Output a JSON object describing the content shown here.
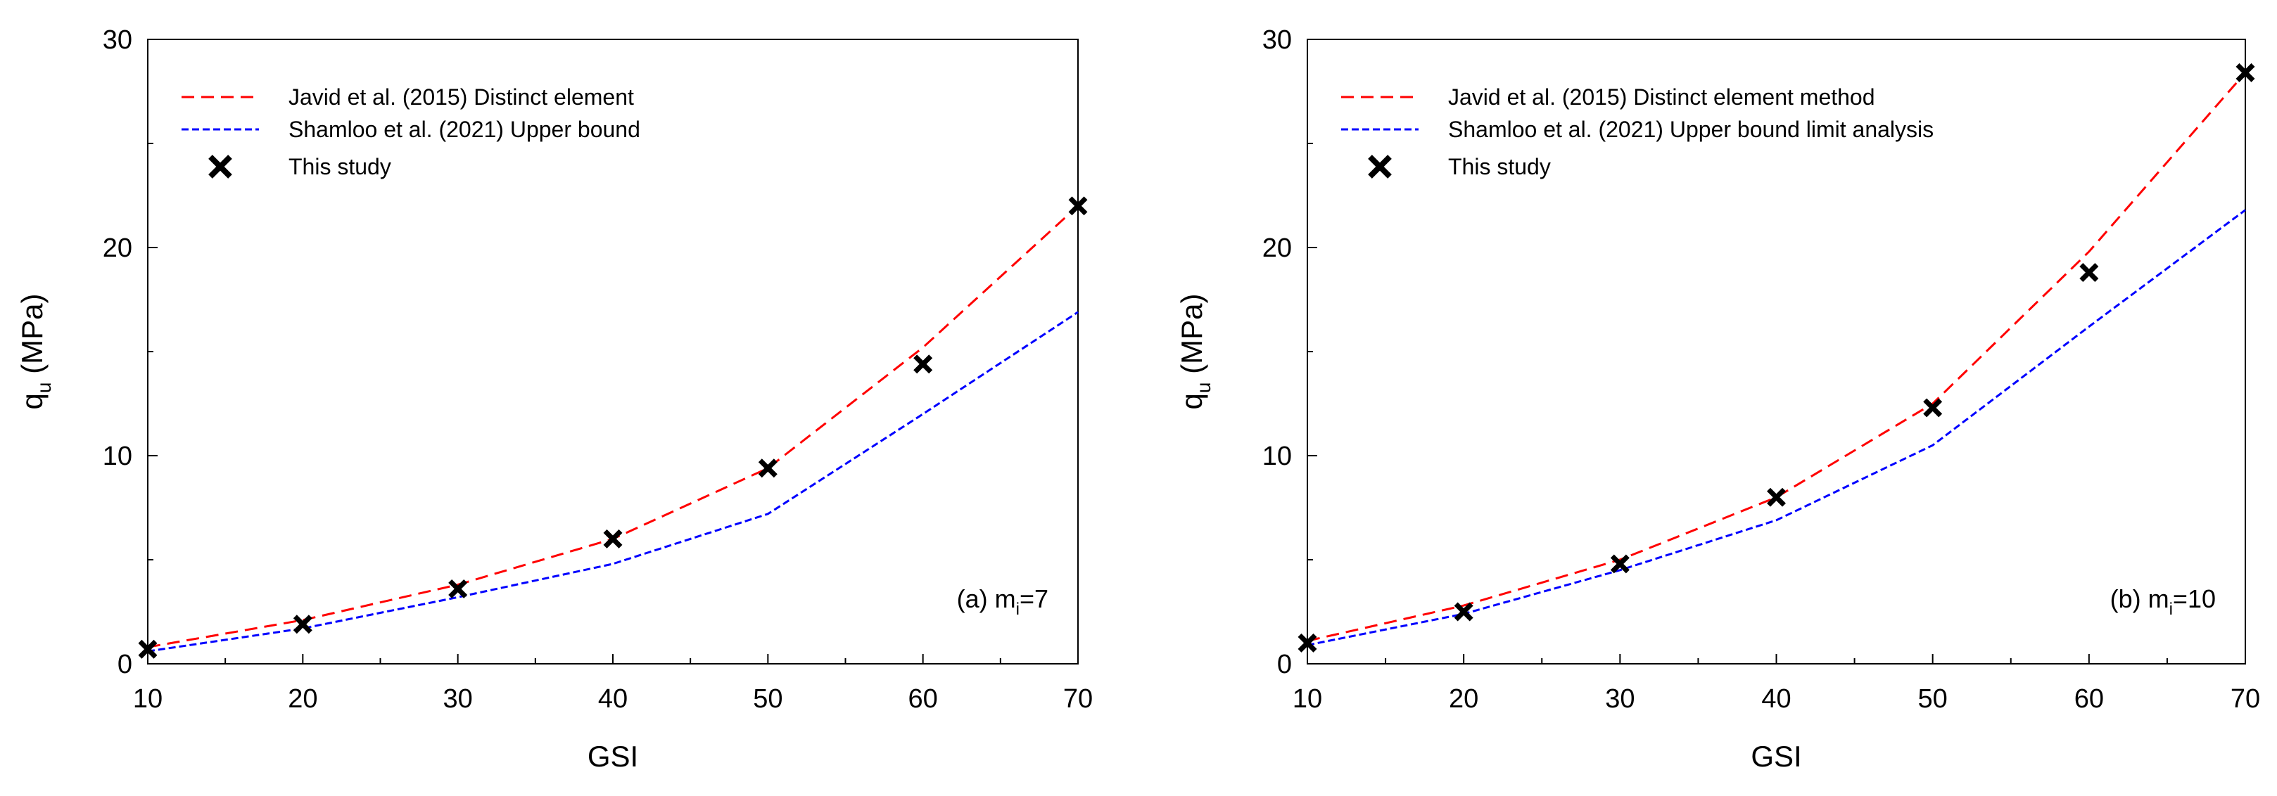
{
  "chart_data": [
    {
      "type": "line",
      "panel": "a",
      "title": "",
      "annotation": {
        "label": "(a) m",
        "sub": "i",
        "tail": "=7"
      },
      "xlabel": "GSI",
      "ylabel": {
        "label": "q",
        "sub": "u",
        "tail": " (MPa)"
      },
      "xlim": [
        10,
        70
      ],
      "ylim": [
        0,
        30
      ],
      "x_ticks": [
        10,
        20,
        30,
        40,
        50,
        60,
        70
      ],
      "y_ticks": [
        0,
        10,
        20,
        30
      ],
      "grid": false,
      "legend_position": "top-left",
      "x": [
        10,
        20,
        30,
        40,
        50,
        60,
        70
      ],
      "series": [
        {
          "name": "Javid et al. (2015) Distinct element",
          "kind": "line",
          "style": "dashed",
          "color": "#ff0000",
          "values": [
            0.8,
            2.1,
            3.8,
            6.0,
            9.4,
            15.2,
            22.0
          ]
        },
        {
          "name": "Shamloo et al. (2021) Upper bound",
          "kind": "line",
          "style": "short-dashed",
          "color": "#0000ff",
          "values": [
            0.6,
            1.7,
            3.2,
            4.8,
            7.2,
            12.0,
            16.9
          ]
        },
        {
          "name": "This study",
          "kind": "marker",
          "marker": "x",
          "color": "#000000",
          "values": [
            0.7,
            1.9,
            3.6,
            6.0,
            9.4,
            14.4,
            22.0
          ]
        }
      ]
    },
    {
      "type": "line",
      "panel": "b",
      "title": "",
      "annotation": {
        "label": "(b) m",
        "sub": "i",
        "tail": "=10"
      },
      "xlabel": "GSI",
      "ylabel": {
        "label": "q",
        "sub": "u",
        "tail": " (MPa)"
      },
      "xlim": [
        10,
        70
      ],
      "ylim": [
        0,
        30
      ],
      "x_ticks": [
        10,
        20,
        30,
        40,
        50,
        60,
        70
      ],
      "y_ticks": [
        0,
        10,
        20,
        30
      ],
      "grid": false,
      "legend_position": "top-left",
      "x": [
        10,
        20,
        30,
        40,
        50,
        60,
        70
      ],
      "series": [
        {
          "name": "Javid et al. (2015) Distinct element method",
          "kind": "line",
          "style": "dashed",
          "color": "#ff0000",
          "values": [
            1.1,
            2.8,
            5.0,
            8.0,
            12.5,
            19.8,
            28.4
          ]
        },
        {
          "name": "Shamloo et al. (2021) Upper bound limit analysis",
          "kind": "line",
          "style": "short-dashed",
          "color": "#0000ff",
          "values": [
            0.9,
            2.4,
            4.5,
            6.9,
            10.5,
            16.2,
            21.8
          ]
        },
        {
          "name": "This study",
          "kind": "marker",
          "marker": "x",
          "color": "#000000",
          "values": [
            1.0,
            2.5,
            4.8,
            8.0,
            12.3,
            18.8,
            28.4
          ]
        }
      ]
    }
  ]
}
